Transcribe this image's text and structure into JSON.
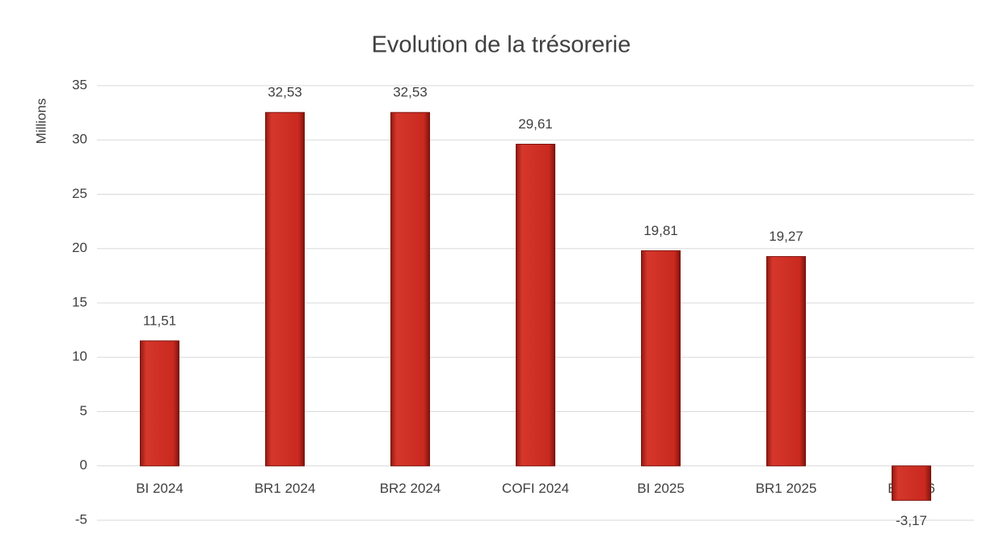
{
  "chart_data": {
    "type": "bar",
    "title": "Evolution de la trésorerie",
    "y_label": "Millions",
    "categories": [
      "BI 2024",
      "BR1 2024",
      "BR2 2024",
      "COFI 2024",
      "BI 2025",
      "BR1 2025",
      "BI 2026"
    ],
    "values": [
      11.51,
      32.53,
      32.53,
      29.61,
      19.81,
      19.27,
      -3.17
    ],
    "value_labels": [
      "11,51",
      "32,53",
      "32,53",
      "29,61",
      "19,81",
      "19,27",
      "-3,17"
    ],
    "color": "#c9291f",
    "ylim": [
      -5,
      35
    ],
    "yticks": [
      -5,
      0,
      5,
      10,
      15,
      20,
      25,
      30,
      35
    ],
    "grid": true
  }
}
